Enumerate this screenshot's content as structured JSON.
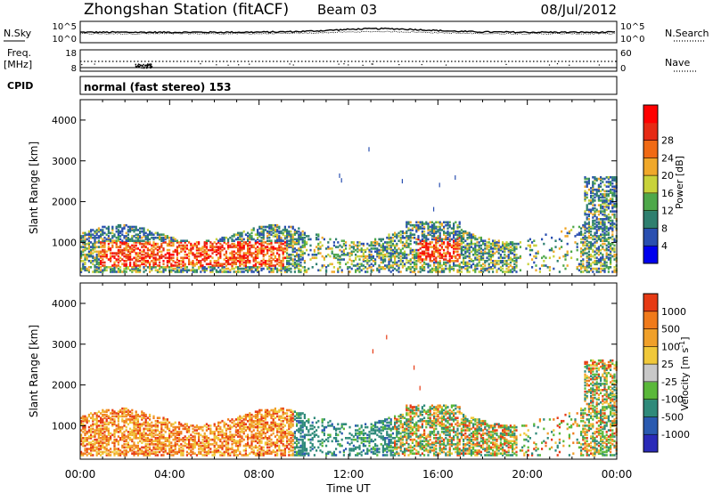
{
  "header": {
    "title": "Zhongshan Station (fitACF)",
    "beam": "Beam 03",
    "date": "08/Jul/2012"
  },
  "noise_panel": {
    "left_label": "N.Sky",
    "right_label": "N.Search",
    "tick_top": "10^5",
    "tick_bottom": "10^0"
  },
  "freq_panel": {
    "left_label_1": "Freq.",
    "left_label_2": "[MHz]",
    "left_tick_top": "18",
    "left_tick_bottom": "8",
    "right_tick_top": "60",
    "right_tick_bottom": "0",
    "right_label": "Nave"
  },
  "cpid_panel": {
    "label": "CPID",
    "text": "normal (fast stereo) 153"
  },
  "chart_data": [
    {
      "type": "heatmap",
      "name": "power",
      "ylabel": "Slant Range [km]",
      "ylim": [
        180,
        4500
      ],
      "yticks": [
        "1000",
        "2000",
        "3000",
        "4000"
      ],
      "xlim": [
        0,
        24
      ],
      "colorbar": {
        "label": "Power [dB]",
        "tick_labels": [
          "4",
          "8",
          "12",
          "16",
          "20",
          "24",
          "28"
        ],
        "colors": [
          "#0000ee",
          "#2a4fb0",
          "#2f7f6f",
          "#4ea84a",
          "#c8d23a",
          "#f0a82a",
          "#f06a14",
          "#e62a14",
          "#ff0000"
        ]
      }
    },
    {
      "type": "heatmap",
      "name": "velocity",
      "ylabel": "Slant Range [km]",
      "xlabel": "Time UT",
      "xticks": [
        "00:00",
        "04:00",
        "08:00",
        "12:00",
        "16:00",
        "20:00",
        "00:00"
      ],
      "ylim": [
        180,
        4500
      ],
      "yticks": [
        "1000",
        "2000",
        "3000",
        "4000"
      ],
      "xlim": [
        0,
        24
      ],
      "colorbar": {
        "label": "Velocity [m s",
        "label_sup": "-1",
        "label_end": "]",
        "tick_labels": [
          "1000",
          "500",
          "100",
          "25",
          "-25",
          "-100",
          "-500",
          "-1000"
        ],
        "colors": [
          "#2a2ab8",
          "#2a5ab0",
          "#2f8a7a",
          "#5ab83a",
          "#c8c8c8",
          "#f0c83a",
          "#f0a02a",
          "#f07a1a",
          "#e63a14"
        ]
      }
    }
  ]
}
